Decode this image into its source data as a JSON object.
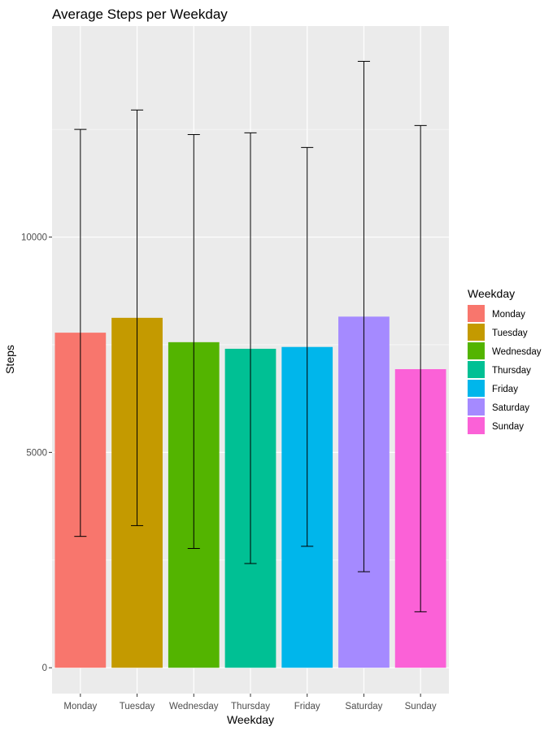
{
  "chart_data": {
    "type": "bar",
    "title": "Average Steps per Weekday",
    "xlabel": "Weekday",
    "ylabel": "Steps",
    "categories": [
      "Monday",
      "Tuesday",
      "Wednesday",
      "Thursday",
      "Friday",
      "Saturday",
      "Sunday"
    ],
    "values": [
      7780,
      8125,
      7559,
      7406,
      7448,
      8153,
      6933
    ],
    "error_low": [
      3050,
      3300,
      2770,
      2420,
      2820,
      2230,
      1300
    ],
    "error_high": [
      12500,
      12950,
      12380,
      12420,
      12080,
      14080,
      12590
    ],
    "colors": [
      "#F8766D",
      "#C49A00",
      "#53B400",
      "#00C094",
      "#00B6EB",
      "#A58AFF",
      "#FB61D7"
    ],
    "ylim": [
      -600,
      14900
    ],
    "yticks": [
      0,
      5000,
      10000
    ],
    "ytick_labels": [
      "0",
      "5000",
      "10000"
    ],
    "grid": true,
    "legend": {
      "title": "Weekday",
      "position": "right"
    }
  }
}
